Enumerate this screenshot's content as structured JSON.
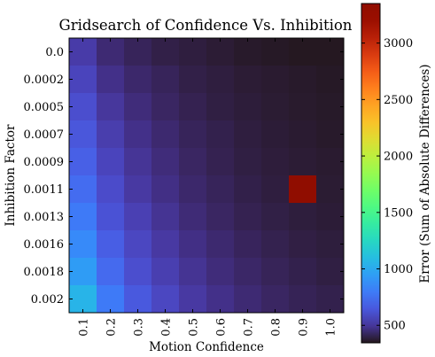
{
  "chart_data": {
    "type": "heatmap",
    "title": "Gridsearch of Confidence Vs. Inhibition",
    "xlabel": "Motion Confidence",
    "ylabel": "Inhibition Factor",
    "colorbar_label": "Error (Sum of Absolute Differences)",
    "colormap": "turbo",
    "x_categories": [
      "0.1",
      "0.2",
      "0.3",
      "0.4",
      "0.5",
      "0.6",
      "0.7",
      "0.8",
      "0.9",
      "1.0"
    ],
    "y_categories": [
      "0.0",
      "0.0002",
      "0.0005",
      "0.0007",
      "0.0009",
      "0.0011",
      "0.0013",
      "0.0016",
      "0.0018",
      "0.002"
    ],
    "values": [
      [
        520,
        440,
        410,
        390,
        380,
        370,
        360,
        355,
        350,
        350
      ],
      [
        560,
        470,
        430,
        410,
        390,
        380,
        370,
        365,
        360,
        355
      ],
      [
        600,
        500,
        450,
        420,
        400,
        385,
        375,
        368,
        362,
        358
      ],
      [
        640,
        530,
        470,
        435,
        410,
        395,
        380,
        372,
        366,
        360
      ],
      [
        680,
        560,
        490,
        450,
        420,
        400,
        385,
        376,
        370,
        365
      ],
      [
        730,
        590,
        510,
        465,
        430,
        410,
        392,
        380,
        3350,
        368
      ],
      [
        790,
        620,
        540,
        485,
        445,
        420,
        400,
        388,
        378,
        372
      ],
      [
        860,
        670,
        570,
        510,
        465,
        435,
        412,
        398,
        386,
        378
      ],
      [
        940,
        720,
        600,
        535,
        485,
        450,
        425,
        408,
        395,
        385
      ],
      [
        1050,
        790,
        650,
        570,
        510,
        470,
        440,
        420,
        405,
        395
      ]
    ],
    "colorbar_ticks": [
      500,
      1000,
      1500,
      2000,
      2500,
      3000
    ],
    "vmin": 345,
    "vmax": 3350
  }
}
